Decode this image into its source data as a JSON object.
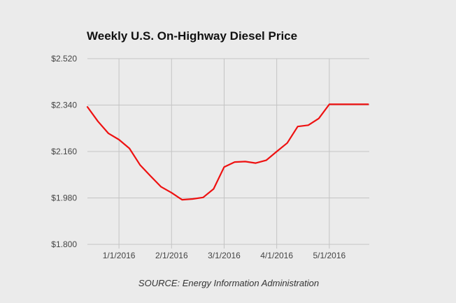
{
  "chart_data": {
    "type": "line",
    "title": "Weekly U.S. On-Highway Diesel Price",
    "source": "SOURCE: Energy Information Administration",
    "xlabel": "",
    "ylabel": "",
    "grid": true,
    "legend": "none",
    "x_range": [
      0,
      26.8
    ],
    "ylim": [
      1.8,
      2.52
    ],
    "y_ticks": [
      {
        "value": 2.52,
        "label": "$2.520"
      },
      {
        "value": 2.34,
        "label": "$2.340"
      },
      {
        "value": 2.16,
        "label": "$2.160"
      },
      {
        "value": 1.98,
        "label": "$1.980"
      },
      {
        "value": 1.8,
        "label": "$1.800"
      }
    ],
    "x_ticks": [
      {
        "value": 3.0,
        "label": "1/1/2016"
      },
      {
        "value": 8.0,
        "label": "2/1/2016"
      },
      {
        "value": 13.0,
        "label": "3/1/2016"
      },
      {
        "value": 18.0,
        "label": "4/1/2016"
      },
      {
        "value": 23.0,
        "label": "5/1/2016"
      }
    ],
    "series": [
      {
        "name": "Diesel Price",
        "color": "#ee1111",
        "x": [
          0,
          1,
          2,
          3,
          4,
          5,
          6,
          7,
          8,
          9,
          10,
          11,
          12,
          13,
          14,
          15,
          16,
          17,
          18,
          19,
          20,
          21,
          22,
          23,
          24,
          25,
          26.7
        ],
        "values": [
          2.333,
          2.277,
          2.23,
          2.206,
          2.172,
          2.108,
          2.065,
          2.023,
          2.0,
          1.973,
          1.976,
          1.982,
          2.015,
          2.1,
          2.119,
          2.121,
          2.115,
          2.126,
          2.16,
          2.193,
          2.257,
          2.262,
          2.288,
          2.343,
          2.343,
          2.343,
          2.343
        ]
      }
    ]
  }
}
